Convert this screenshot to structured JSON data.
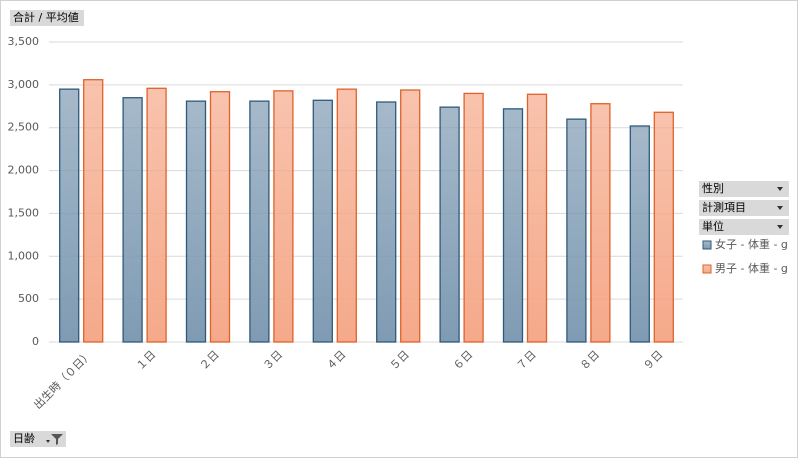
{
  "chart_data": {
    "type": "bar",
    "categories": [
      "出生時（０日）",
      "１日",
      "２日",
      "３日",
      "４日",
      "５日",
      "６日",
      "７日",
      "８日",
      "９日"
    ],
    "series": [
      {
        "name": "女子 - 体重 - g",
        "color": "#7f9bb3",
        "values": [
          2950,
          2850,
          2810,
          2810,
          2820,
          2800,
          2740,
          2720,
          2600,
          2520
        ]
      },
      {
        "name": "男子 - 体重 - g",
        "color": "#f5a98a",
        "values": [
          3060,
          2960,
          2920,
          2930,
          2950,
          2940,
          2900,
          2890,
          2780,
          2680
        ]
      }
    ],
    "ylim": [
      0,
      3500
    ],
    "yticks": [
      0,
      500,
      {
        "value": 1000,
        "label": "1,000"
      },
      {
        "value": 1500,
        "label": "1,500"
      },
      {
        "value": 2000,
        "label": "2,000"
      },
      {
        "value": 2500,
        "label": "2,500"
      },
      {
        "value": 3000,
        "label": "3,000"
      },
      {
        "value": 3500,
        "label": "3,500"
      }
    ],
    "grid": true
  },
  "pivot_buttons": {
    "values_field": "合計 / 平均値",
    "axis_field": "日齢",
    "legend_fields": [
      "性別",
      "計測項目",
      "単位"
    ]
  }
}
